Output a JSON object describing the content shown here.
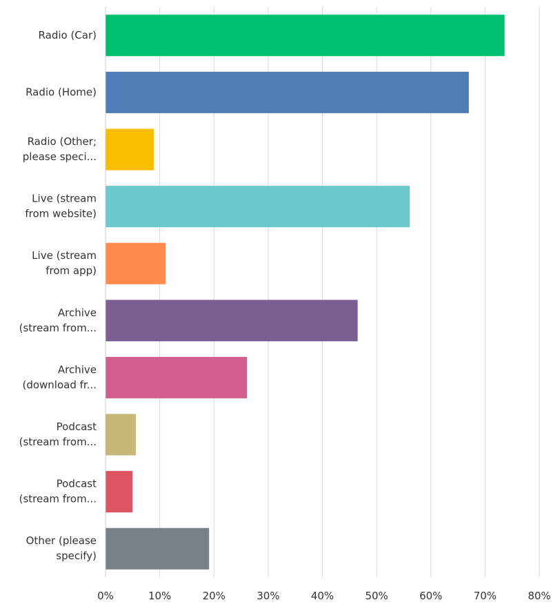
{
  "chart_data": {
    "type": "bar",
    "orientation": "horizontal",
    "categories": [
      [
        "Radio (Car)"
      ],
      [
        "Radio (Home)"
      ],
      [
        "Radio (Other;",
        "please speci..."
      ],
      [
        "Live (stream",
        "from website)"
      ],
      [
        "Live (stream",
        "from app)"
      ],
      [
        "Archive",
        "(stream from..."
      ],
      [
        "Archive",
        "(download fr..."
      ],
      [
        "Podcast",
        "(stream from..."
      ],
      [
        "Podcast",
        "(stream from..."
      ],
      [
        "Other (please",
        "specify)"
      ]
    ],
    "values": [
      73.6,
      67.0,
      8.9,
      56.1,
      11.1,
      46.5,
      26.1,
      5.6,
      5.0,
      19.1
    ],
    "colors": [
      "#00bf6f",
      "#507cb6",
      "#f9be00",
      "#6bc8cd",
      "#ff8b4f",
      "#7d5e90",
      "#d25f90",
      "#c7b879",
      "#dc5461",
      "#768086"
    ],
    "xlim": [
      0,
      80
    ],
    "xticks": [
      0,
      10,
      20,
      30,
      40,
      50,
      60,
      70,
      80
    ],
    "xtick_labels": [
      "0%",
      "10%",
      "20%",
      "30%",
      "40%",
      "50%",
      "60%",
      "70%",
      "80%"
    ],
    "grid": "vertical",
    "gridline_color": "#d9d9d9",
    "axis_line_color": "#cccccc",
    "title": "",
    "xlabel": "",
    "ylabel": ""
  }
}
